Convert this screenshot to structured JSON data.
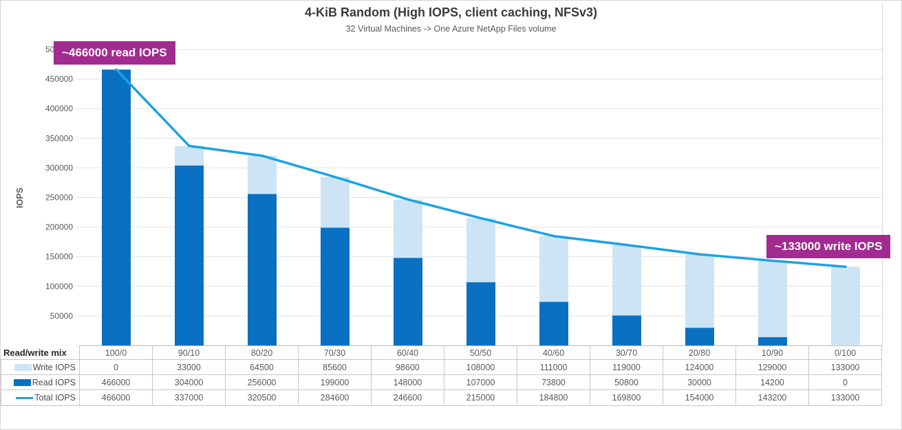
{
  "header": {
    "title": "4-KiB Random (High IOPS, client caching, NFSv3)",
    "subtitle": "32 Virtual Machines -> One Azure NetApp Files volume"
  },
  "annotations": {
    "read_peak": "~466000 read IOPS",
    "write_peak": "~133000 write IOPS"
  },
  "chart_data": {
    "type": "bar",
    "subtype": "stacked-columns-with-line-overlay",
    "title": "4-KiB Random (High IOPS, client caching, NFSv3)",
    "subtitle": "32 Virtual Machines -> One Azure NetApp Files volume",
    "xlabel": "",
    "ylabel": "IOPS",
    "ylim": [
      0,
      500000
    ],
    "ytick_interval": 50000,
    "grid": true,
    "legend_position": "data-table-left-keys",
    "category_axis_label": "Read/write mix",
    "categories": [
      "100/0",
      "90/10",
      "80/20",
      "70/30",
      "60/40",
      "50/50",
      "40/60",
      "30/70",
      "20/80",
      "10/90",
      "0/100"
    ],
    "series": [
      {
        "name": "Write IOPS",
        "render": "bar",
        "stack_position": "top",
        "color": "#cde4f5",
        "values": [
          0,
          33000,
          64500,
          85600,
          98600,
          108000,
          111000,
          119000,
          124000,
          129000,
          133000
        ]
      },
      {
        "name": "Read IOPS",
        "render": "bar",
        "stack_position": "bottom",
        "color": "#0a70c2",
        "values": [
          466000,
          304000,
          256000,
          199000,
          148000,
          107000,
          73800,
          50800,
          30000,
          14200,
          0
        ]
      },
      {
        "name": "Total IOPS",
        "render": "line",
        "color": "#1ba2e3",
        "values": [
          466000,
          337000,
          320500,
          284600,
          246600,
          215000,
          184800,
          169800,
          154000,
          143200,
          133000
        ]
      }
    ],
    "annotations": [
      {
        "text": "~466000 read IOPS",
        "anchor": "top of 100/0 column"
      },
      {
        "text": "~133000 write IOPS",
        "anchor": "above end of Total IOPS line at 0/100"
      }
    ]
  },
  "colors": {
    "read_bar": "#0a70c2",
    "write_bar": "#cde4f5",
    "total_line": "#1ba2e3",
    "annotation_bg": "#a12b90",
    "grid_line": "#e2e2e2",
    "table_border": "#c6c6c6",
    "frame_border": "#d6d6d6",
    "text_title": "#3b3b3b",
    "text_strong": "#262626",
    "text_muted": "#595959"
  }
}
